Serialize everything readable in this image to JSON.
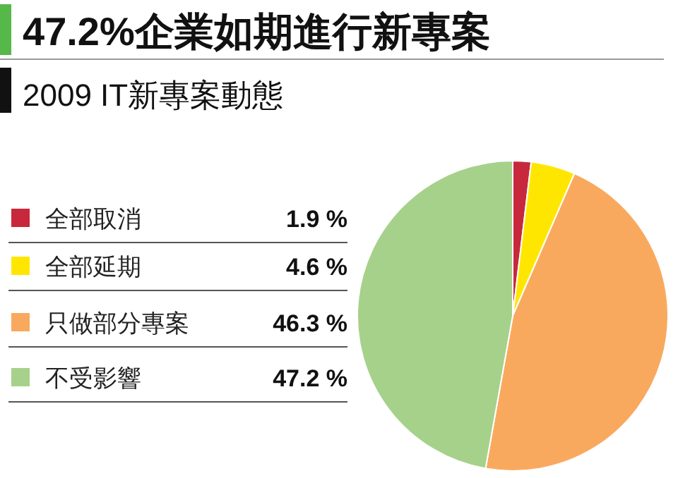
{
  "chart_data": {
    "type": "pie",
    "title": "47.2%企業如期進行新專案",
    "subtitle": "2009 IT新專案動態",
    "categories": [
      "全部取消",
      "全部延期",
      "只做部分專案",
      "不受影響"
    ],
    "values": [
      1.9,
      4.6,
      46.3,
      47.2
    ],
    "value_labels": [
      "1.9 %",
      "4.6 %",
      "46.3 %",
      "47.2 %"
    ],
    "colors": [
      "#c8283c",
      "#ffe600",
      "#f9a95e",
      "#a6d18a"
    ],
    "legend": "left"
  }
}
